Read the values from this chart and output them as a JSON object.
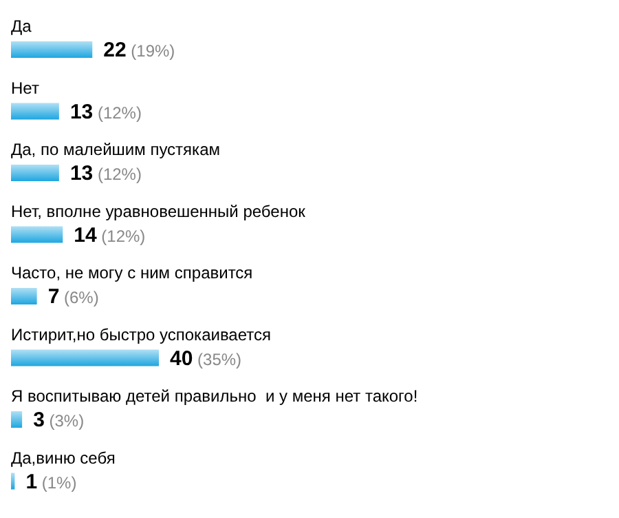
{
  "chart_data": {
    "type": "bar",
    "orientation": "horizontal",
    "categories": [
      "Да",
      "Нет",
      "Да, по малейшим пустякам",
      "Нет, вполне уравновешенный ребенок",
      "Часто, не могу с ним справится",
      "Истирит,но быстро успокаивается",
      "Я воспитываю детей правильно  и у меня нет такого!",
      "Да,виню себя"
    ],
    "values": [
      22,
      13,
      13,
      14,
      7,
      40,
      3,
      1
    ],
    "value_labels": [
      "22 (19%)",
      "13 (12%)",
      "13 (12%)",
      "14 (12%)",
      "7 (6%)",
      "40 (35%)",
      "3 (3%)",
      "1 (1%)"
    ],
    "color": "#1ea6e0"
  }
}
